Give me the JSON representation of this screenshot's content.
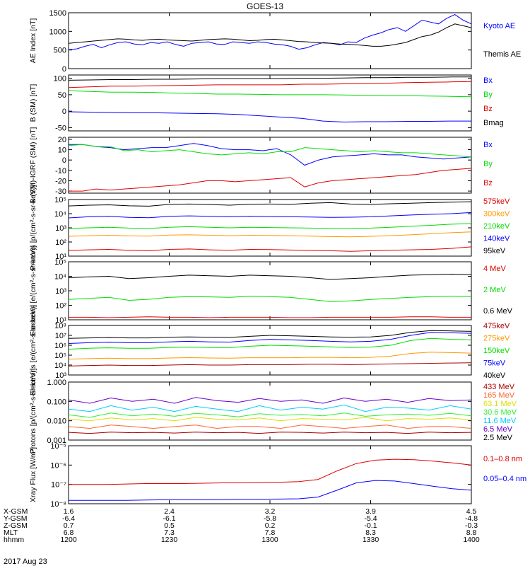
{
  "title": "GOES-13",
  "date_label": "2017 Aug 23",
  "colors": {
    "black": "#000000",
    "blue": "#0000ff",
    "green": "#00dd00",
    "red": "#dd0000",
    "orange": "#ff9900",
    "darkred": "#aa0000",
    "purple": "#6600cc",
    "cyan": "#00ccff",
    "yellow": "#dddd00",
    "lime": "#33ee33",
    "salmon": "#ff6633"
  },
  "ephemeris": {
    "labels": [
      "X-GSM",
      "Y-GSM",
      "Z-GSM",
      "MLT",
      "hhmm"
    ],
    "columns": [
      [
        "1.6",
        "-6.4",
        "0.7",
        "6.8",
        "1200"
      ],
      [
        "2.4",
        "-6.1",
        "0.5",
        "7.3",
        "1230"
      ],
      [
        "3.2",
        "-5.8",
        "0.2",
        "7.8",
        "1300"
      ],
      [
        "3.9",
        "-5.4",
        "-0.1",
        "8.3",
        "1330"
      ],
      [
        "4.5",
        "-4.8",
        "-0.3",
        "8.8",
        "1400"
      ]
    ]
  },
  "chart_data": [
    {
      "type": "line",
      "ylabel": "AE Index [nT]",
      "x": "UT 12:00-14:00",
      "ylim": [
        0,
        1500
      ],
      "yticks": [
        0,
        500,
        1000,
        1500
      ],
      "series": [
        {
          "name": "Kyoto AE",
          "color": "#0000ff",
          "values": [
            510,
            530,
            600,
            650,
            560,
            640,
            700,
            720,
            660,
            640,
            700,
            680,
            720,
            650,
            600,
            680,
            700,
            720,
            660,
            650,
            720,
            700,
            680,
            720,
            700,
            660,
            640,
            600,
            520,
            560,
            640,
            700,
            680,
            640,
            720,
            700,
            820,
            900,
            960,
            1050,
            1100,
            1000,
            1150,
            1300,
            1250,
            1200,
            1350,
            1450,
            1300,
            1200
          ]
        },
        {
          "name": "Themis AE",
          "color": "#000000",
          "values": [
            680,
            700,
            720,
            740,
            760,
            780,
            800,
            790,
            770,
            760,
            780,
            790,
            770,
            760,
            750,
            740,
            760,
            780,
            790,
            800,
            790,
            770,
            750,
            760,
            780,
            790,
            770,
            750,
            730,
            720,
            700,
            690,
            680,
            660,
            650,
            640,
            620,
            600,
            600,
            620,
            660,
            700,
            780,
            860,
            900,
            980,
            1100,
            1200,
            1150,
            1100
          ]
        }
      ]
    },
    {
      "type": "line",
      "ylabel": "B (SM) [nT]",
      "ylim": [
        -60,
        110
      ],
      "yticks": [
        -50,
        0,
        50,
        100
      ],
      "series": [
        {
          "name": "Bx",
          "color": "#0000ff",
          "values": [
            -2,
            -3,
            -4,
            -5,
            -5,
            -6,
            -7,
            -8,
            -10,
            -14,
            -18,
            -22,
            -30,
            -33,
            -32,
            -32,
            -31,
            -31,
            -30,
            -30
          ]
        },
        {
          "name": "By",
          "color": "#00dd00",
          "values": [
            62,
            60,
            58,
            58,
            57,
            55,
            54,
            52,
            52,
            51,
            50,
            50,
            50,
            49,
            48,
            47,
            47,
            46,
            45,
            44
          ]
        },
        {
          "name": "Bz",
          "color": "#dd0000",
          "values": [
            72,
            74,
            76,
            76,
            77,
            78,
            79,
            80,
            80,
            80,
            80,
            82,
            82,
            83,
            84,
            85,
            87,
            88,
            89,
            90
          ]
        },
        {
          "name": "Bmag",
          "color": "#000000",
          "values": [
            94,
            95,
            96,
            96,
            97,
            97,
            98,
            99,
            99,
            99,
            99,
            100,
            100,
            101,
            102,
            102,
            103,
            103,
            104,
            104
          ]
        }
      ]
    },
    {
      "type": "line",
      "ylabel": "B (SM)-IGRF (SM) [nT]",
      "ylim": [
        -32,
        22
      ],
      "yticks": [
        -30,
        -20,
        -10,
        0,
        10,
        20
      ],
      "series": [
        {
          "name": "Bx",
          "color": "#0000ff",
          "values": [
            15,
            15,
            13,
            12,
            10,
            11,
            12,
            12,
            14,
            16,
            14,
            11,
            10,
            10,
            9,
            11,
            5,
            -5,
            0,
            3,
            4,
            5,
            6,
            5,
            5,
            3,
            2,
            1,
            2,
            3
          ]
        },
        {
          "name": "By",
          "color": "#00dd00",
          "values": [
            14,
            15,
            13,
            13,
            9,
            10,
            8,
            9,
            10,
            8,
            6,
            5,
            6,
            7,
            6,
            8,
            8,
            12,
            11,
            10,
            9,
            8,
            9,
            8,
            7,
            7,
            6,
            5,
            4,
            3
          ]
        },
        {
          "name": "Bz",
          "color": "#dd0000",
          "values": [
            -30,
            -30,
            -28,
            -29,
            -28,
            -27,
            -26,
            -25,
            -24,
            -22,
            -20,
            -20,
            -21,
            -20,
            -19,
            -18,
            -17,
            -26,
            -22,
            -20,
            -19,
            -18,
            -17,
            -16,
            -15,
            -14,
            -12,
            -10,
            -9,
            -8
          ]
        }
      ]
    },
    {
      "type": "line",
      "ylabel": "Protons [p/(cm²-s-sr-keV)]",
      "scale": "log",
      "ylim": [
        10,
        100000
      ],
      "yticks": [
        "10¹",
        "10²",
        "10³",
        "10⁴",
        "10⁵"
      ],
      "series": [
        {
          "name": "575keV",
          "color": "#dd0000",
          "values": [
            25,
            28,
            30,
            26,
            24,
            30,
            32,
            28,
            26,
            30,
            29,
            27,
            25,
            24,
            22,
            24,
            26,
            28,
            30,
            35,
            45
          ]
        },
        {
          "name": "300keV",
          "color": "#ff9900",
          "values": [
            250,
            280,
            300,
            270,
            260,
            310,
            320,
            300,
            280,
            300,
            290,
            280,
            260,
            240,
            230,
            250,
            280,
            320,
            380,
            450,
            520
          ]
        },
        {
          "name": "210keV",
          "color": "#00dd00",
          "values": [
            900,
            1000,
            1100,
            950,
            900,
            1100,
            1200,
            1100,
            1000,
            1100,
            1050,
            1000,
            950,
            900,
            900,
            950,
            1100,
            1300,
            1500,
            1800,
            2000
          ]
        },
        {
          "name": "140keV",
          "color": "#0000ff",
          "values": [
            5000,
            6000,
            6500,
            5500,
            5200,
            6500,
            7000,
            6500,
            6000,
            6500,
            6200,
            6000,
            5800,
            5500,
            5600,
            6000,
            7000,
            8000,
            9000,
            10000,
            12000
          ]
        },
        {
          "name": "95keV",
          "color": "#000000",
          "values": [
            35000,
            40000,
            42000,
            36000,
            34000,
            45000,
            48000,
            44000,
            40000,
            46000,
            48000,
            45000,
            55000,
            60000,
            48000,
            45000,
            50000,
            55000,
            60000,
            65000,
            70000
          ]
        }
      ]
    },
    {
      "type": "line",
      "ylabel": "Electrons [e/(cm²-s-sr-keV)]",
      "scale": "log",
      "ylim": [
        10,
        100000
      ],
      "yticks": [
        "10¹",
        "10²",
        "10³",
        "10⁴",
        "10⁵"
      ],
      "series": [
        {
          "name": "4 MeV",
          "color": "#dd0000",
          "values": [
            15,
            15,
            14,
            15,
            16,
            15,
            15,
            14,
            15,
            15,
            15,
            14,
            14,
            15,
            15,
            15,
            15,
            16,
            16,
            15,
            15
          ]
        },
        {
          "name": "2 MeV",
          "color": "#00dd00",
          "values": [
            250,
            300,
            350,
            220,
            260,
            350,
            400,
            380,
            350,
            420,
            400,
            350,
            250,
            180,
            200,
            250,
            300,
            350,
            400,
            420,
            400
          ]
        },
        {
          "name": "0.6 MeV",
          "color": "#000000",
          "values": [
            8000,
            9000,
            10000,
            7000,
            8000,
            10000,
            12000,
            11000,
            10000,
            12000,
            11000,
            10000,
            8000,
            6000,
            7000,
            8000,
            10000,
            12000,
            13000,
            14000,
            13000
          ]
        }
      ]
    },
    {
      "type": "line",
      "ylabel": "Electrons [e/(cm²-s-sr-keV)]",
      "scale": "log",
      "ylim": [
        1000,
        100000000
      ],
      "yticks": [
        "10³",
        "10⁴",
        "10⁵",
        "10⁶",
        "10⁷",
        "10⁸"
      ],
      "series": [
        {
          "name": "475keV",
          "color": "#aa0000",
          "values": [
            8000,
            9000,
            10000,
            9000,
            9000,
            10000,
            11000,
            10000,
            10000,
            11000,
            11000,
            11000,
            12000,
            12000,
            11000,
            12000,
            13000,
            14000,
            15000,
            16000,
            17000
          ]
        },
        {
          "name": "275keV",
          "color": "#ff9900",
          "values": [
            40000,
            45000,
            50000,
            45000,
            45000,
            52000,
            56000,
            52000,
            50000,
            55000,
            55000,
            55000,
            60000,
            60000,
            55000,
            60000,
            80000,
            150000,
            200000,
            180000,
            160000
          ]
        },
        {
          "name": "150keV",
          "color": "#00dd00",
          "values": [
            400000,
            500000,
            550000,
            500000,
            500000,
            600000,
            650000,
            600000,
            580000,
            800000,
            1000000,
            900000,
            800000,
            700000,
            600000,
            650000,
            1000000,
            3000000,
            5000000,
            4000000,
            3500000
          ]
        },
        {
          "name": "75keV",
          "color": "#0000ff",
          "values": [
            1500000,
            1800000,
            2000000,
            1800000,
            1800000,
            2200000,
            2500000,
            2200000,
            2100000,
            3000000,
            4000000,
            3500000,
            3000000,
            2500000,
            2200000,
            2500000,
            4000000,
            10000000,
            20000000,
            18000000,
            16000000
          ]
        },
        {
          "name": "40keV",
          "color": "#000000",
          "values": [
            5000000,
            5500000,
            6000000,
            5500000,
            5500000,
            6500000,
            7000000,
            6500000,
            6200000,
            8000000,
            10000000,
            9000000,
            8000000,
            7000000,
            6500000,
            7000000,
            10000000,
            20000000,
            30000000,
            28000000,
            25000000
          ]
        }
      ]
    },
    {
      "type": "line",
      "ylabel": "Protons [p/(cm²-s-sr-keV)]",
      "scale": "log",
      "ylim": [
        0.001,
        1
      ],
      "yticks": [
        "0.001",
        "0.010",
        "0.100",
        "1.000"
      ],
      "series": [
        {
          "name": "433 MeV",
          "color": "#aa0000",
          "values": [
            0.0025,
            0.0022,
            0.0026,
            0.0024,
            0.0025,
            0.0023,
            0.0026,
            0.0024,
            0.0025,
            0.0022,
            0.0026,
            0.0025,
            0.0023,
            0.0026,
            0.0024,
            0.0025,
            0.0022,
            0.0026,
            0.0024,
            0.0025
          ]
        },
        {
          "name": "165 MeV",
          "color": "#ff6633",
          "values": [
            0.005,
            0.004,
            0.006,
            0.005,
            0.004,
            0.005,
            0.006,
            0.004,
            0.005,
            0.005,
            0.004,
            0.006,
            0.005,
            0.004,
            0.005,
            0.006,
            0.004,
            0.005,
            0.005,
            0.004
          ]
        },
        {
          "name": "63.1 MeV",
          "color": "#dddd00",
          "values": [
            0.012,
            0.01,
            0.014,
            0.011,
            0.013,
            0.01,
            0.015,
            0.012,
            0.011,
            0.014,
            0.01,
            0.013,
            0.012,
            0.011,
            0.015,
            0.01,
            0.013,
            0.012,
            0.014,
            0.011
          ]
        },
        {
          "name": "30.6 MeV",
          "color": "#33ee33",
          "values": [
            0.02,
            0.015,
            0.025,
            0.018,
            0.022,
            0.017,
            0.024,
            0.02,
            0.016,
            0.023,
            0.019,
            0.021,
            0.018,
            0.025,
            0.017,
            0.02,
            0.022,
            0.019,
            0.024,
            0.018
          ]
        },
        {
          "name": "11.6 MeV",
          "color": "#00ccff",
          "values": [
            0.04,
            0.03,
            0.06,
            0.035,
            0.05,
            0.03,
            0.055,
            0.04,
            0.03,
            0.06,
            0.035,
            0.05,
            0.04,
            0.065,
            0.03,
            0.05,
            0.045,
            0.035,
            0.06,
            0.04
          ]
        },
        {
          "name": "6.5 MeV",
          "color": "#6600cc",
          "values": [
            0.12,
            0.08,
            0.15,
            0.1,
            0.13,
            0.08,
            0.16,
            0.11,
            0.09,
            0.14,
            0.1,
            0.12,
            0.08,
            0.15,
            0.1,
            0.13,
            0.09,
            0.14,
            0.11,
            0.12
          ]
        },
        {
          "name": "2.5 MeV",
          "color": "#000000",
          "values": []
        }
      ]
    },
    {
      "type": "line",
      "ylabel": "Xray Flux [W/m²]",
      "scale": "log",
      "ylim": [
        1e-08,
        1e-05
      ],
      "yticks": [
        "10⁻⁸",
        "10⁻⁷",
        "10⁻⁶",
        "10⁻⁵"
      ],
      "series": [
        {
          "name": "0.1–0.8 nm",
          "color": "#dd0000",
          "values": [
            1e-07,
            1e-07,
            1e-07,
            1.05e-07,
            1.1e-07,
            1.1e-07,
            1.1e-07,
            1.15e-07,
            1.2e-07,
            1.2e-07,
            1.25e-07,
            1.3e-07,
            1.4e-07,
            1.8e-07,
            5e-07,
            1.2e-06,
            1.8e-06,
            2e-06,
            1.9e-06,
            1.6e-06,
            1.3e-06,
            1e-06
          ]
        },
        {
          "name": "0.05–0.4 nm",
          "color": "#0000ff",
          "values": [
            1.5e-08,
            1.5e-08,
            1.5e-08,
            1.5e-08,
            1.55e-08,
            1.6e-08,
            1.6e-08,
            1.6e-08,
            1.65e-08,
            1.7e-08,
            1.7e-08,
            1.75e-08,
            1.8e-08,
            2.2e-08,
            5e-08,
            1.2e-07,
            1.6e-07,
            1.5e-07,
            1.1e-07,
            8e-08,
            6e-08,
            5e-08
          ]
        }
      ]
    }
  ]
}
